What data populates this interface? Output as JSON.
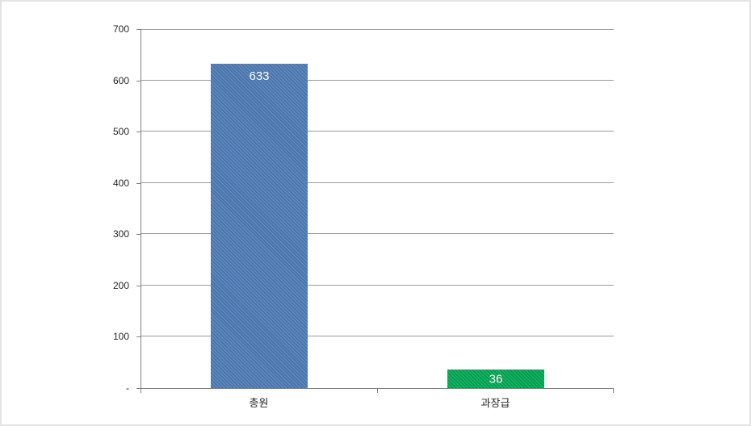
{
  "chart_data": {
    "type": "bar",
    "categories": [
      "총원",
      "과장급"
    ],
    "values": [
      633,
      36
    ],
    "series_colors": [
      "#4b79b2",
      "#00a551"
    ],
    "value_label_color": "#ffffff",
    "ylim": [
      0,
      700
    ],
    "ytick_interval": 100,
    "ytick_labels": [
      "-",
      "100",
      "200",
      "300",
      "400",
      "500",
      "600",
      "700"
    ],
    "grid": true,
    "gridline_color": "#9b9b9b",
    "axis_color": "#7f7f7f",
    "legend": "none",
    "frame_color": "#e3e3e3"
  }
}
